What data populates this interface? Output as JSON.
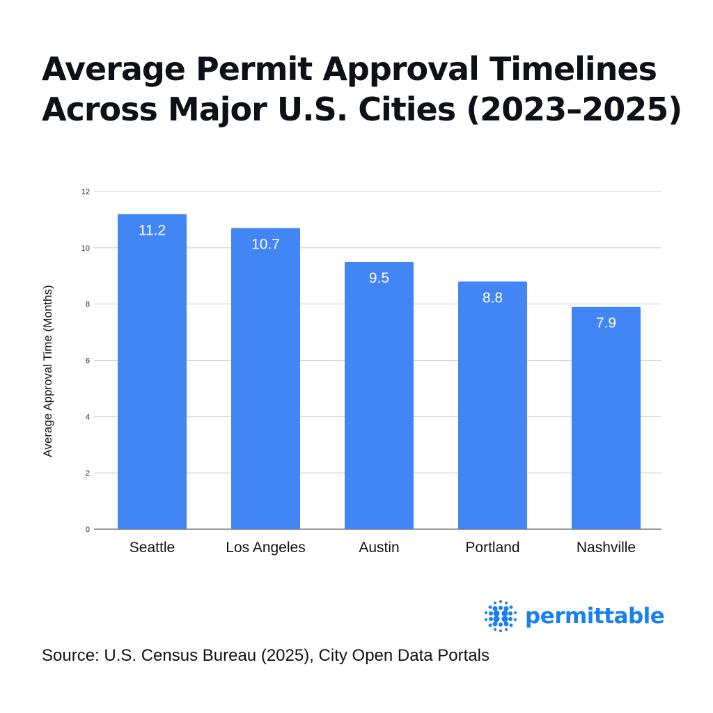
{
  "chart_data": {
    "type": "bar",
    "title": "Average Permit Approval Timelines Across Major U.S. Cities (2023–2025)",
    "title_lines": [
      "Average Permit Approval Timelines",
      "Across Major U.S. Cities (2023–2025)"
    ],
    "xlabel": "",
    "ylabel": "Average Approval Time (Months)",
    "categories": [
      "Seattle",
      "Los Angeles",
      "Austin",
      "Portland",
      "Nashville"
    ],
    "values": [
      11.2,
      10.7,
      9.5,
      8.8,
      7.9
    ],
    "data_labels": [
      "11.2",
      "10.7",
      "9.5",
      "8.8",
      "7.9"
    ],
    "ylim": [
      0,
      12
    ],
    "yticks": [
      0,
      2,
      4,
      6,
      8,
      10,
      12
    ],
    "grid": true,
    "bar_color": "#4285f4"
  },
  "source": "Source: U.S. Census Bureau (2025), City Open Data Portals",
  "logo": {
    "text": "permittable",
    "color": "#1a7ff0",
    "icon": "dot-grid-icon"
  }
}
